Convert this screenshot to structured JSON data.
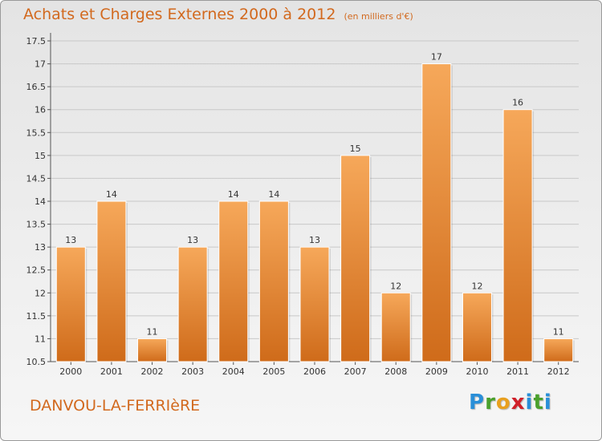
{
  "header": {
    "title": "Achats et Charges Externes 2000 à 2012",
    "unit_note": "(en milliers d'€)"
  },
  "footer": {
    "town": "DANVOU-LA-FERRIèRE",
    "brand_letters": [
      "P",
      "r",
      "o",
      "x",
      "i",
      "t",
      "i"
    ],
    "brand_colors": [
      "#2a8fd8",
      "#4aa02c",
      "#e8a020",
      "#d0202a",
      "#2a8fd8",
      "#4aa02c",
      "#2a8fd8"
    ]
  },
  "colors": {
    "bar_top": "#f6a85a",
    "bar_bottom": "#cf6b1a",
    "grid": "#c8c8c8",
    "axis_text": "#333333",
    "title": "#d2691e"
  },
  "chart_data": {
    "type": "bar",
    "categories": [
      "2000",
      "2001",
      "2002",
      "2003",
      "2004",
      "2005",
      "2006",
      "2007",
      "2008",
      "2009",
      "2010",
      "2011",
      "2012"
    ],
    "values": [
      13,
      14,
      11,
      13,
      14,
      14,
      13,
      15,
      12,
      17,
      12,
      16,
      11
    ],
    "data_labels": [
      "13",
      "14",
      "11",
      "13",
      "14",
      "14",
      "13",
      "15",
      "12",
      "17",
      "12",
      "16",
      "11"
    ],
    "ylim": [
      10.5,
      17.5
    ],
    "yticks": [
      10.5,
      11,
      11.5,
      12,
      12.5,
      13,
      13.5,
      14,
      14.5,
      15,
      15.5,
      16,
      16.5,
      17,
      17.5
    ],
    "ytick_labels": [
      "10.5",
      "11",
      "11.5",
      "12",
      "12.5",
      "13",
      "13.5",
      "14",
      "14.5",
      "15",
      "15.5",
      "16",
      "16.5",
      "17",
      "17.5"
    ],
    "grid": true,
    "xlabel": "",
    "ylabel": ""
  }
}
